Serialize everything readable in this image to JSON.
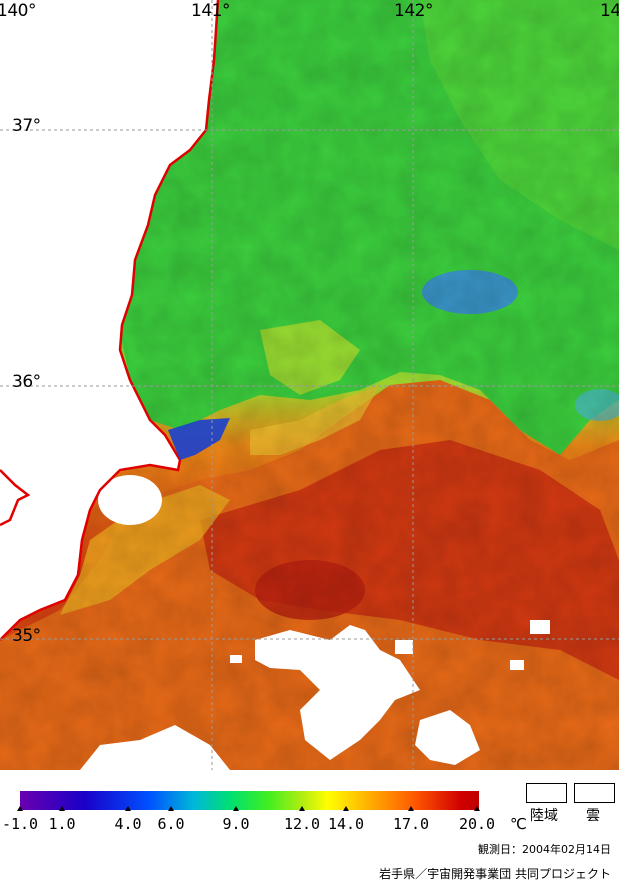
{
  "map": {
    "longitude_labels": [
      "140°",
      "141°",
      "142°",
      "14"
    ],
    "latitude_labels": [
      "37°",
      "36°",
      "35°"
    ]
  },
  "legend": {
    "tick_values": [
      "-1.0",
      "1.0",
      "4.0",
      "6.0",
      "9.0",
      "12.0",
      "14.0",
      "17.0",
      "20.0"
    ],
    "unit": "℃",
    "land_label": "陸域",
    "cloud_label": "雲",
    "scale_min": -1.0,
    "scale_max": 20.0
  },
  "footer": {
    "observation_date": "観測日：2004年02月14日",
    "credit": "岩手県／宇宙開発事業団 共同プロジェクト"
  },
  "colors": {
    "coastline": "#e00000",
    "grid": "#a0a0a0",
    "land": "#ffffff",
    "cloud": "#ffffff",
    "cold_water": "#2060e0",
    "mid_water": "#40d040",
    "warm_water": "#e06010"
  }
}
